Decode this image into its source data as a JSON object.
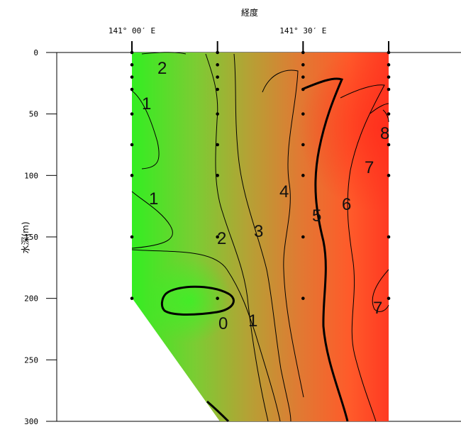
{
  "chart_data": {
    "type": "heatmap",
    "title": "経度",
    "xlabel": "経度",
    "ylabel": "水深(m)",
    "x_ticks": [
      {
        "label": "141° 00′ E",
        "value": 141.0
      },
      {
        "label": "141° 30′ E",
        "value": 141.5
      }
    ],
    "y_ticks": [
      0,
      50,
      100,
      150,
      200,
      250,
      300
    ],
    "ylim": [
      0,
      300
    ],
    "y_reversed": true,
    "stations": [
      {
        "lon": 141.0,
        "depths": [
          0,
          10,
          20,
          30,
          50,
          75,
          100,
          150,
          200
        ]
      },
      {
        "lon": 141.25,
        "depths": [
          0,
          10,
          20,
          30,
          50,
          75,
          100,
          150,
          200
        ]
      },
      {
        "lon": 141.5,
        "depths": [
          0,
          10,
          20,
          30,
          50,
          75,
          100,
          150,
          200
        ]
      },
      {
        "lon": 141.75,
        "depths": [
          0,
          10,
          20,
          30,
          50,
          75,
          100,
          150,
          200
        ]
      }
    ],
    "contour_labels": [
      "2",
      "1",
      "1",
      "2",
      "3",
      "4",
      "5",
      "6",
      "7",
      "8",
      "7",
      "0",
      "1"
    ],
    "colors": {
      "low": "#33ee22",
      "mid": "#cc7733",
      "high": "#ff3322",
      "contour": "#000000"
    }
  }
}
